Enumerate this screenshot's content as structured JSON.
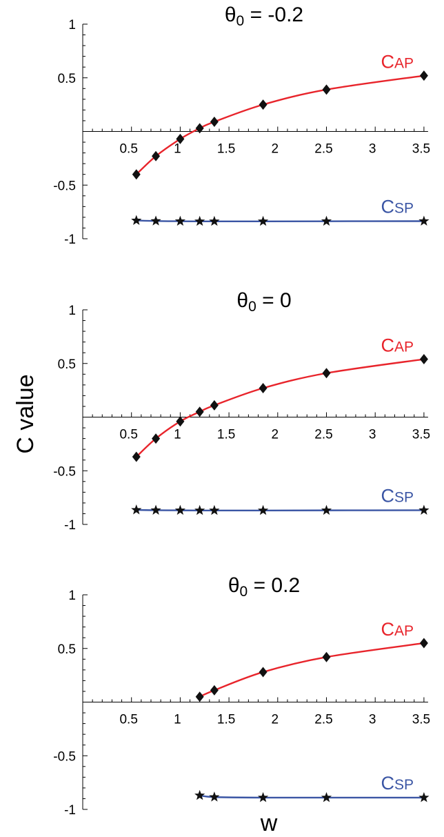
{
  "figure": {
    "ylabel": "C value",
    "xlabel": "w"
  },
  "colors": {
    "cap": "#e8242b",
    "csp": "#3a55a4",
    "marker": "#111111"
  },
  "chart_data": [
    {
      "type": "line",
      "title": {
        "prefix": "θ",
        "sub": "0",
        "suffix": " = -0.2"
      },
      "xlim": [
        0,
        3.5
      ],
      "ylim": [
        -1,
        1
      ],
      "xticks": [
        "0.5",
        "1",
        "1.5",
        "2",
        "2.5",
        "3",
        "3.5"
      ],
      "yticks": [
        "1",
        "0.5",
        "-0.5",
        "-1"
      ],
      "series": [
        {
          "name_main": "C",
          "name_sub": "AP",
          "marker": "diamond",
          "x": [
            0.55,
            0.75,
            1.0,
            1.2,
            1.35,
            1.85,
            2.5,
            3.5
          ],
          "y": [
            -0.4,
            -0.23,
            -0.07,
            0.03,
            0.09,
            0.25,
            0.39,
            0.52
          ]
        },
        {
          "name_main": "C",
          "name_sub": "SP",
          "marker": "star",
          "x": [
            0.55,
            0.75,
            1.0,
            1.2,
            1.35,
            1.85,
            2.5,
            3.5
          ],
          "y": [
            -0.83,
            -0.835,
            -0.837,
            -0.838,
            -0.838,
            -0.838,
            -0.837,
            -0.836
          ]
        }
      ]
    },
    {
      "type": "line",
      "title": {
        "prefix": "θ",
        "sub": "0",
        "suffix": " = 0"
      },
      "xlim": [
        0,
        3.5
      ],
      "ylim": [
        -1,
        1
      ],
      "xticks": [
        "0.5",
        "1",
        "1.5",
        "2",
        "2.5",
        "3",
        "3.5"
      ],
      "yticks": [
        "1",
        "0.5",
        "-0.5",
        "-1"
      ],
      "series": [
        {
          "name_main": "C",
          "name_sub": "AP",
          "marker": "diamond",
          "x": [
            0.55,
            0.75,
            1.0,
            1.2,
            1.35,
            1.85,
            2.5,
            3.5
          ],
          "y": [
            -0.37,
            -0.2,
            -0.04,
            0.05,
            0.11,
            0.27,
            0.41,
            0.54
          ]
        },
        {
          "name_main": "C",
          "name_sub": "SP",
          "marker": "star",
          "x": [
            0.55,
            0.75,
            1.0,
            1.2,
            1.35,
            1.85,
            2.5,
            3.5
          ],
          "y": [
            -0.865,
            -0.868,
            -0.869,
            -0.87,
            -0.87,
            -0.87,
            -0.869,
            -0.868
          ]
        }
      ]
    },
    {
      "type": "line",
      "title": {
        "prefix": "θ",
        "sub": "0",
        "suffix": " = 0.2"
      },
      "xlim": [
        0,
        3.5
      ],
      "ylim": [
        -1,
        1
      ],
      "xticks": [
        "0.5",
        "1",
        "1.5",
        "2",
        "2.5",
        "3",
        "3.5"
      ],
      "yticks": [
        "1",
        "0.5",
        "-0.5",
        "-1"
      ],
      "series": [
        {
          "name_main": "C",
          "name_sub": "AP",
          "marker": "diamond",
          "x": [
            1.2,
            1.35,
            1.85,
            2.5,
            3.5
          ],
          "y": [
            0.05,
            0.11,
            0.28,
            0.42,
            0.55
          ]
        },
        {
          "name_main": "C",
          "name_sub": "SP",
          "marker": "star",
          "x": [
            1.2,
            1.35,
            1.85,
            2.5,
            3.5
          ],
          "y": [
            -0.87,
            -0.885,
            -0.89,
            -0.89,
            -0.89
          ]
        }
      ]
    }
  ]
}
